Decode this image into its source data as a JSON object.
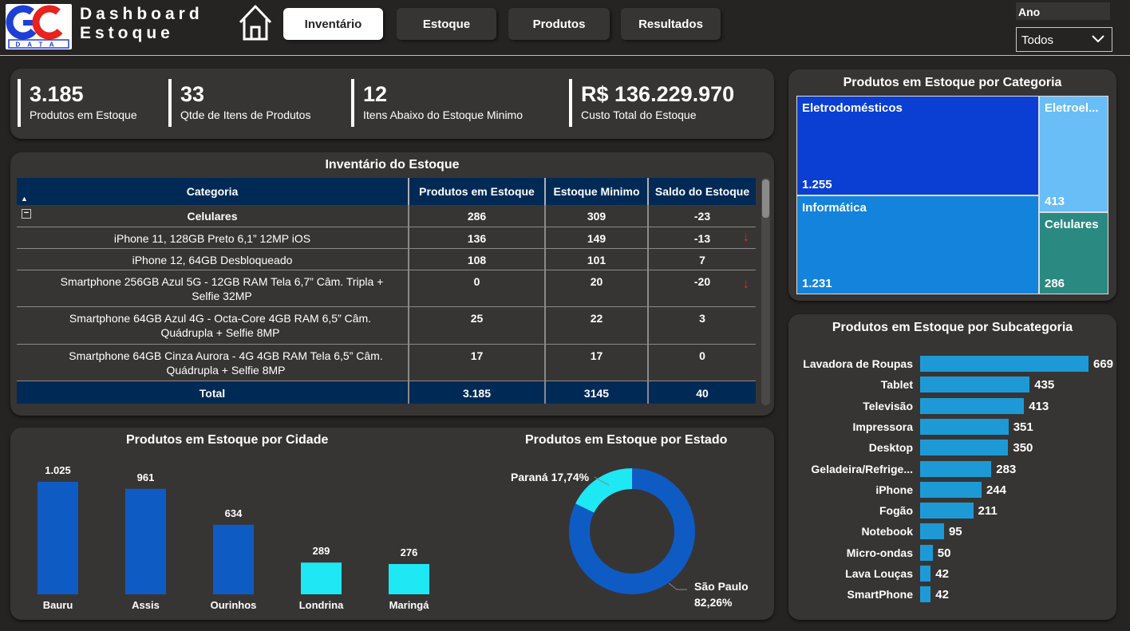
{
  "header": {
    "logo_text": "GC DATA",
    "title_line1": "Dashboard",
    "title_line2": "Estoque",
    "tabs": [
      {
        "label": "Inventário",
        "active": true
      },
      {
        "label": "Estoque",
        "active": false
      },
      {
        "label": "Produtos",
        "active": false
      },
      {
        "label": "Resultados",
        "active": false
      }
    ],
    "filter": {
      "label": "Ano",
      "value": "Todos"
    }
  },
  "kpis": [
    {
      "value": "3.185",
      "label": "Produtos em Estoque"
    },
    {
      "value": "33",
      "label": "Qtde de Itens de Produtos"
    },
    {
      "value": "12",
      "label": "Itens Abaixo do Estoque Minimo"
    },
    {
      "value": "R$ 136.229.970",
      "label": "Custo Total do Estoque"
    }
  ],
  "inventory": {
    "title": "Inventário do Estoque",
    "columns": [
      "Categoria",
      "Produtos em Estoque",
      "Estoque Minimo",
      "Saldo do Estoque"
    ],
    "group": {
      "name": "Celulares",
      "produtos": "286",
      "minimo": "309",
      "saldo": "-23"
    },
    "rows": [
      {
        "name": "iPhone 11, 128GB Preto 6,1” 12MP iOS",
        "produtos": "136",
        "minimo": "149",
        "saldo": "-13",
        "alert": true
      },
      {
        "name": "iPhone 12, 64GB Desbloqueado",
        "produtos": "108",
        "minimo": "101",
        "saldo": "7",
        "alert": false
      },
      {
        "name": "Smartphone 256GB Azul 5G - 12GB RAM Tela 6,7” Câm. Tripla + Selfie 32MP",
        "produtos": "0",
        "minimo": "20",
        "saldo": "-20",
        "alert": true
      },
      {
        "name": "Smartphone 64GB Azul 4G - Octa-Core 4GB RAM 6,5” Câm. Quádrupla + Selfie 8MP",
        "produtos": "25",
        "minimo": "22",
        "saldo": "3",
        "alert": false
      },
      {
        "name": "Smartphone 64GB Cinza Aurora - 4G 4GB RAM Tela 6,5” Câm. Quádrupla + Selfie 8MP",
        "produtos": "17",
        "minimo": "17",
        "saldo": "0",
        "alert": false
      }
    ],
    "total": {
      "label": "Total",
      "produtos": "3.185",
      "minimo": "3145",
      "saldo": "40"
    }
  },
  "treemap": {
    "title": "Produtos em Estoque por Categoria",
    "items": [
      {
        "name": "Eletrodomésticos",
        "value": "1.255",
        "color": "#0b3fd4"
      },
      {
        "name": "Eletroel...",
        "value": "413",
        "color": "#69bef7"
      },
      {
        "name": "Informática",
        "value": "1.231",
        "color": "#1383dc"
      },
      {
        "name": "Celulares",
        "value": "286",
        "color": "#2a8a82"
      }
    ]
  },
  "subcategory": {
    "title": "Produtos em Estoque por Subcategoria",
    "color": "#1d9ad6",
    "items": [
      {
        "name": "Lavadora de Roupas",
        "value": 669
      },
      {
        "name": "Tablet",
        "value": 435
      },
      {
        "name": "Televisão",
        "value": 413
      },
      {
        "name": "Impressora",
        "value": 351
      },
      {
        "name": "Desktop",
        "value": 350
      },
      {
        "name": "Geladeira/Refrige...",
        "value": 283
      },
      {
        "name": "iPhone",
        "value": 244
      },
      {
        "name": "Fogão",
        "value": 211
      },
      {
        "name": "Notebook",
        "value": 95
      },
      {
        "name": "Micro-ondas",
        "value": 50
      },
      {
        "name": "Lava Louças",
        "value": 42
      },
      {
        "name": "SmartPhone",
        "value": 42
      }
    ]
  },
  "chart_data": [
    {
      "type": "bar",
      "title": "Produtos em Estoque por Cidade",
      "categories": [
        "Bauru",
        "Assis",
        "Ourinhos",
        "Londrina",
        "Maringá"
      ],
      "values": [
        1025,
        961,
        634,
        289,
        276
      ],
      "value_labels": [
        "1.025",
        "961",
        "634",
        "289",
        "276"
      ],
      "colors": [
        "#0f5bc4",
        "#0f5bc4",
        "#0f5bc4",
        "#1ee8f4",
        "#1ee8f4"
      ],
      "xlabel": "",
      "ylabel": "",
      "ylim": [
        0,
        1025
      ]
    },
    {
      "type": "pie",
      "title": "Produtos em Estoque por Estado",
      "labels": [
        "São Paulo",
        "Paraná"
      ],
      "values": [
        82.26,
        17.74
      ],
      "display_labels": [
        "São Paulo 82,26%",
        "Paraná 17,74%"
      ],
      "colors": [
        "#0f5bc4",
        "#1ee8f4"
      ]
    }
  ]
}
